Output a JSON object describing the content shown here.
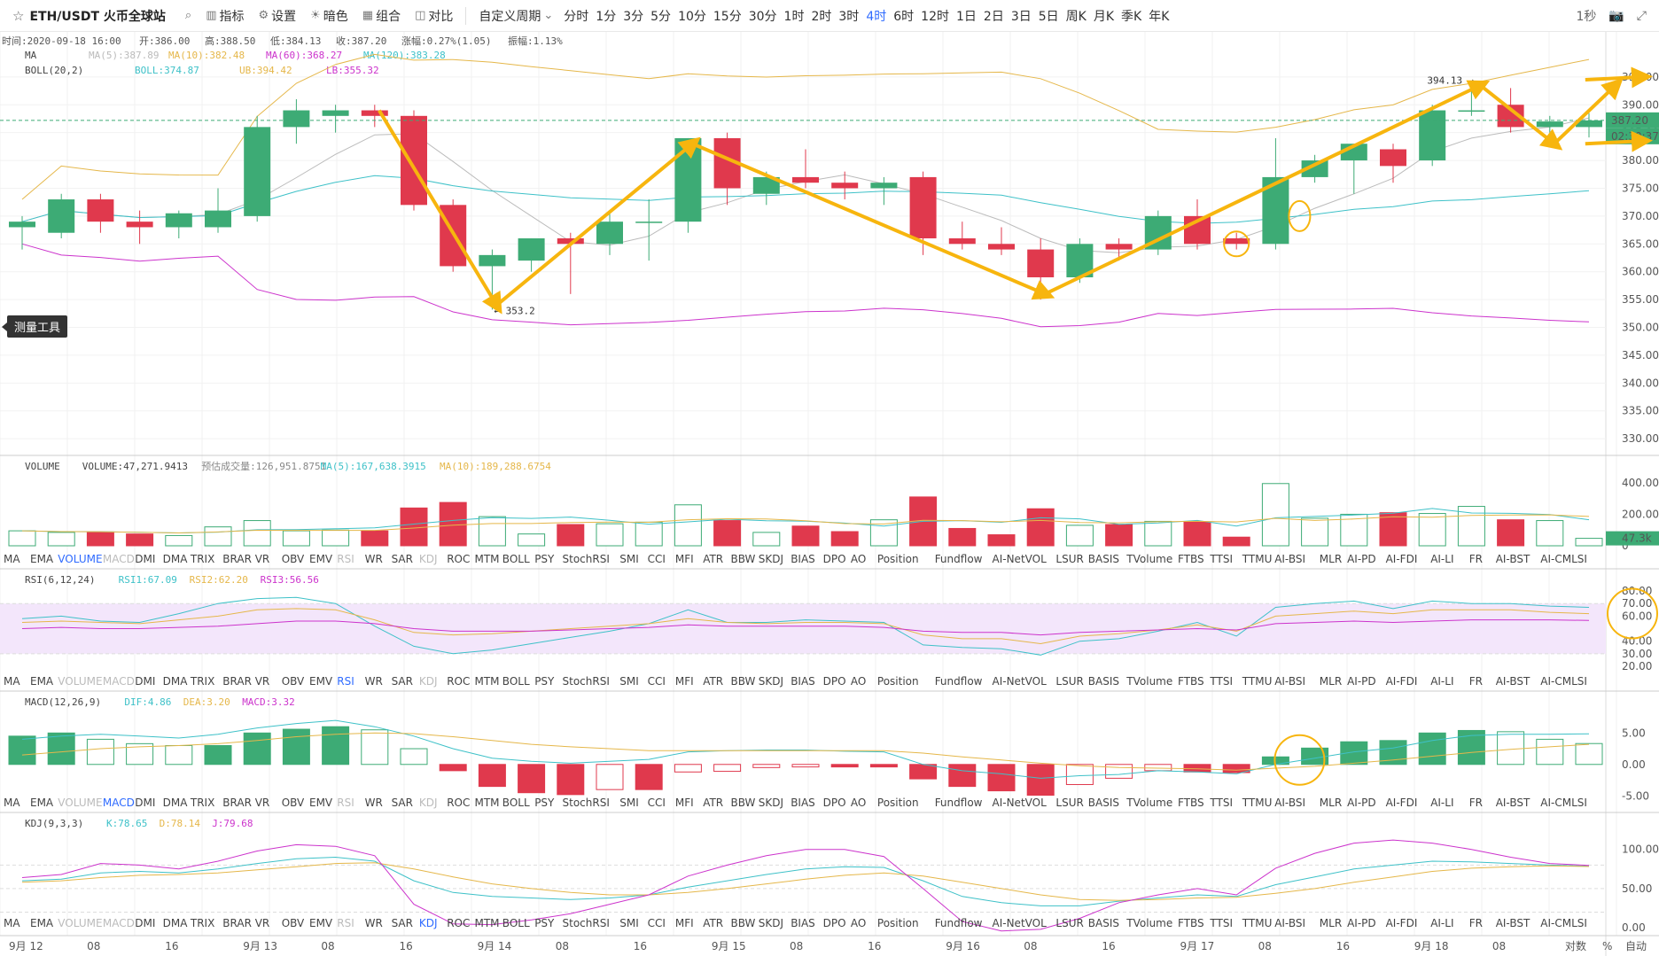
{
  "toolbar": {
    "symbol": "ETH/USDT 火币全球站",
    "buttons": [
      {
        "name": "search",
        "label": ""
      },
      {
        "name": "indicators",
        "label": "指标"
      },
      {
        "name": "settings",
        "label": "设置"
      },
      {
        "name": "dark",
        "label": "暗色"
      },
      {
        "name": "combo",
        "label": "组合"
      },
      {
        "name": "compare",
        "label": "对比"
      }
    ],
    "custom_period": "自定义周期",
    "periods": [
      "分时",
      "1分",
      "3分",
      "5分",
      "10分",
      "15分",
      "30分",
      "1时",
      "2时",
      "3时",
      "4时",
      "6时",
      "12时",
      "1日",
      "2日",
      "3日",
      "5日",
      "周K",
      "月K",
      "季K",
      "年K"
    ],
    "active_period": "4时",
    "interval": "1秒"
  },
  "info": {
    "line1": [
      {
        "k": "时间:",
        "v": "2020-09-18 16:00"
      },
      {
        "k": "开:",
        "v": "386.00"
      },
      {
        "k": "高:",
        "v": "388.50"
      },
      {
        "k": "低:",
        "v": "384.13"
      },
      {
        "k": "收:",
        "v": "387.20"
      },
      {
        "k": "涨幅:",
        "v": "0.27%(1.05)"
      },
      {
        "k": "振幅:",
        "v": "1.13%"
      }
    ],
    "ma": {
      "name": "MA",
      "ma5": "MA(5):387.89",
      "ma10": "MA(10):382.48",
      "ma60": "MA(60):368.27",
      "ma120": "MA(120):383.28"
    },
    "boll": {
      "name": "BOLL(20,2)",
      "mid": "BOLL:374.87",
      "ub": "UB:394.42",
      "lb": "LB:355.32"
    }
  },
  "volume_header": {
    "name": "VOLUME",
    "vol": "VOLUME:47,271.9413",
    "est": "预估成交量:126,951.8751",
    "ma5": "MA(5):167,638.3915",
    "ma10": "MA(10):189,288.6754"
  },
  "rsi_header": {
    "name": "RSI(6,12,24)",
    "r1": "RSI1:67.09",
    "r2": "RSI2:62.20",
    "r3": "RSI3:56.56"
  },
  "macd_header": {
    "name": "MACD(12,26,9)",
    "dif": "DIF:4.86",
    "dea": "DEA:3.20",
    "macd": "MACD:3.32"
  },
  "kdj_header": {
    "name": "KDJ(9,3,3)",
    "k": "K:78.65",
    "d": "D:78.14",
    "j": "J:79.68"
  },
  "indicator_tabs": [
    "MA",
    "EMA",
    "VOLUME",
    "MACD",
    "DMI",
    "DMA",
    "TRIX",
    "BRAR",
    "VR",
    "OBV",
    "EMV",
    "RSI",
    "WR",
    "SAR",
    "KDJ",
    "ROC",
    "MTM",
    "BOLL",
    "PSY",
    "StochRSI",
    "SMI",
    "CCI",
    "MFI",
    "ATR",
    "BBW",
    "SKDJ",
    "BIAS",
    "DPO",
    "AO",
    "Position",
    "Fundflow",
    "AI-NetVOL",
    "LSUR",
    "BASIS",
    "TVolume",
    "FTBS",
    "TTSI",
    "TTMU",
    "AI-BSI",
    "MLR",
    "AI-PD",
    "AI-FDI",
    "AI-LI",
    "FR",
    "AI-BST",
    "AI-CMLSI"
  ],
  "date_axis": [
    "9月 12",
    "08",
    "16",
    "9月 13",
    "08",
    "16",
    "9月 14",
    "08",
    "16",
    "9月 15",
    "08",
    "16",
    "9月 16",
    "08",
    "16",
    "9月 17",
    "08",
    "16",
    "9月 18",
    "08"
  ],
  "bottom_right": {
    "log": "对数",
    "pct": "%",
    "auto": "自动"
  },
  "measure_tool": "测量工具",
  "price_axis": [
    "395.00",
    "390.00",
    "385.00",
    "380.00",
    "375.00",
    "370.00",
    "365.00",
    "360.00",
    "355.00",
    "350.00",
    "345.00",
    "340.00",
    "335.00",
    "330.00"
  ],
  "last_price": "387.20",
  "countdown": "02:30:37",
  "annotations": {
    "high": "394.13",
    "low": "353.2"
  },
  "volume_axis": [
    "400.00k",
    "200.00k",
    "0"
  ],
  "last_volume": "47.3k",
  "rsi_axis": [
    "80.00",
    "70.00",
    "60.00",
    "40.00",
    "30.00",
    "20.00"
  ],
  "macd_axis": [
    "5.00",
    "0.00",
    "-5.00"
  ],
  "kdj_axis": [
    "100.00",
    "50.00",
    "0.00"
  ],
  "colors": {
    "up": "#3dab75",
    "down": "#e0394d",
    "ma5": "#bbbbbb",
    "ma10": "#e5b74a",
    "ma60": "#3ec1c8",
    "ma120": "#cc33cc",
    "arrow": "#f7b50e",
    "accent": "#2f6bff"
  },
  "chart_data": {
    "type": "candlestick",
    "interval": "4h",
    "candles": [
      {
        "o": 368,
        "h": 370,
        "l": 364,
        "c": 369,
        "v": 95000
      },
      {
        "o": 367,
        "h": 374,
        "l": 366,
        "c": 373,
        "v": 85000
      },
      {
        "o": 373,
        "h": 374,
        "l": 367,
        "c": 369,
        "v": 88000
      },
      {
        "o": 369,
        "h": 371,
        "l": 365,
        "c": 368,
        "v": 75000
      },
      {
        "o": 368,
        "h": 371,
        "l": 366,
        "c": 370.5,
        "v": 65000
      },
      {
        "o": 368,
        "h": 375,
        "l": 367,
        "c": 371,
        "v": 120000
      },
      {
        "o": 370,
        "h": 388,
        "l": 369,
        "c": 386,
        "v": 160000
      },
      {
        "o": 386,
        "h": 391,
        "l": 383,
        "c": 389,
        "v": 95000
      },
      {
        "o": 388,
        "h": 390,
        "l": 385,
        "c": 389,
        "v": 100000
      },
      {
        "o": 389,
        "h": 390,
        "l": 386,
        "c": 388,
        "v": 95000
      },
      {
        "o": 388,
        "h": 389,
        "l": 371,
        "c": 372,
        "v": 240000
      },
      {
        "o": 372,
        "h": 373,
        "l": 360,
        "c": 361,
        "v": 275000
      },
      {
        "o": 361,
        "h": 364,
        "l": 353.2,
        "c": 363,
        "v": 185000
      },
      {
        "o": 362,
        "h": 366,
        "l": 360,
        "c": 366,
        "v": 75000
      },
      {
        "o": 366,
        "h": 367,
        "l": 356,
        "c": 365,
        "v": 135000
      },
      {
        "o": 365,
        "h": 371,
        "l": 363,
        "c": 369,
        "v": 140000
      },
      {
        "o": 369,
        "h": 373,
        "l": 362,
        "c": 369,
        "v": 150000
      },
      {
        "o": 369,
        "h": 384,
        "l": 367,
        "c": 384,
        "v": 260000
      },
      {
        "o": 384,
        "h": 385,
        "l": 372,
        "c": 375,
        "v": 160000
      },
      {
        "o": 374,
        "h": 378,
        "l": 372,
        "c": 377,
        "v": 85000
      },
      {
        "o": 377,
        "h": 382,
        "l": 375,
        "c": 376,
        "v": 125000
      },
      {
        "o": 376,
        "h": 378,
        "l": 373,
        "c": 375,
        "v": 90000
      },
      {
        "o": 375,
        "h": 377,
        "l": 372,
        "c": 376,
        "v": 165000
      },
      {
        "o": 377,
        "h": 378,
        "l": 363,
        "c": 366,
        "v": 310000
      },
      {
        "o": 366,
        "h": 369,
        "l": 364,
        "c": 365,
        "v": 110000
      },
      {
        "o": 365,
        "h": 368,
        "l": 363,
        "c": 364,
        "v": 70000
      },
      {
        "o": 364,
        "h": 366,
        "l": 355,
        "c": 359,
        "v": 235000
      },
      {
        "o": 359,
        "h": 366,
        "l": 358,
        "c": 365,
        "v": 130000
      },
      {
        "o": 365,
        "h": 366,
        "l": 362,
        "c": 364,
        "v": 135000
      },
      {
        "o": 364,
        "h": 371,
        "l": 363,
        "c": 370,
        "v": 155000
      },
      {
        "o": 370,
        "h": 373,
        "l": 364,
        "c": 365,
        "v": 150000
      },
      {
        "o": 366,
        "h": 367,
        "l": 364,
        "c": 365,
        "v": 55000
      },
      {
        "o": 365,
        "h": 384,
        "l": 364,
        "c": 377,
        "v": 395000
      },
      {
        "o": 377,
        "h": 381,
        "l": 376,
        "c": 380,
        "v": 175000
      },
      {
        "o": 380,
        "h": 383,
        "l": 374,
        "c": 383,
        "v": 200000
      },
      {
        "o": 382,
        "h": 383,
        "l": 376,
        "c": 379,
        "v": 210000
      },
      {
        "o": 380,
        "h": 390,
        "l": 379,
        "c": 389,
        "v": 205000
      },
      {
        "o": 389,
        "h": 394.13,
        "l": 388,
        "c": 389,
        "v": 250000
      },
      {
        "o": 390,
        "h": 393,
        "l": 385,
        "c": 386,
        "v": 165000
      },
      {
        "o": 386,
        "h": 388,
        "l": 384,
        "c": 387,
        "v": 160000
      },
      {
        "o": 386,
        "h": 388.5,
        "l": 384.13,
        "c": 387.2,
        "v": 47272
      }
    ],
    "y_range": [
      327,
      398
    ],
    "x_labels": [
      "9月 12",
      "9月 13",
      "9月 14",
      "9月 15",
      "9月 16",
      "9月 17",
      "9月 18"
    ],
    "rsi": {
      "r1": [
        58,
        60,
        56,
        55,
        62,
        70,
        74,
        75,
        70,
        52,
        36,
        30,
        33,
        38,
        43,
        48,
        54,
        65,
        55,
        55,
        57,
        56,
        55,
        37,
        35,
        34,
        29,
        40,
        42,
        48,
        55,
        44,
        67,
        70,
        72,
        66,
        72,
        70,
        70,
        68,
        67
      ],
      "r2": [
        55,
        56,
        55,
        54,
        57,
        60,
        65,
        66,
        65,
        57,
        47,
        45,
        46,
        48,
        50,
        52,
        54,
        58,
        55,
        54,
        55,
        55,
        54,
        45,
        42,
        42,
        38,
        44,
        46,
        49,
        53,
        48,
        60,
        62,
        64,
        62,
        65,
        65,
        65,
        63,
        62
      ],
      "r3": [
        50,
        51,
        50,
        50,
        51,
        52,
        54,
        56,
        56,
        54,
        50,
        48,
        48,
        48,
        49,
        50,
        51,
        53,
        52,
        52,
        52,
        52,
        51,
        48,
        47,
        47,
        45,
        47,
        48,
        49,
        50,
        49,
        54,
        55,
        56,
        55,
        56,
        57,
        57,
        57,
        56.5
      ],
      "range": [
        20,
        85
      ]
    },
    "macd": {
      "dif": [
        4,
        4.5,
        4.8,
        4.5,
        4.2,
        4.8,
        5.8,
        6.5,
        7,
        6,
        4.5,
        2.5,
        1,
        0.5,
        0.2,
        0.5,
        0.8,
        2,
        2.2,
        2.3,
        2.3,
        2.1,
        2,
        0,
        -1,
        -1.5,
        -2.2,
        -1.8,
        -1.6,
        -1,
        -1.2,
        -1.5,
        0,
        1,
        2,
        2.6,
        3.8,
        4.6,
        4.8,
        4.8,
        4.86
      ],
      "dea": [
        1.5,
        2,
        2.5,
        2.8,
        3,
        3.3,
        3.8,
        4.4,
        4.8,
        5,
        4.9,
        4.4,
        3.8,
        3.2,
        2.8,
        2.5,
        2.2,
        2.2,
        2.2,
        2.2,
        2.2,
        2.2,
        2.2,
        1.8,
        1.2,
        0.7,
        0.2,
        -0.2,
        -0.5,
        -0.6,
        -0.7,
        -0.9,
        -0.6,
        -0.3,
        0.2,
        0.7,
        1.3,
        1.9,
        2.4,
        2.8,
        3.2
      ],
      "hist": [
        4.5,
        5,
        4,
        3.3,
        3,
        3,
        5,
        5.6,
        6,
        5.5,
        2.5,
        -1,
        -3.5,
        -4.5,
        -4.8,
        -4,
        -4,
        -1.2,
        -1.1,
        -0.5,
        -0.4,
        -0.4,
        -0.4,
        -2.3,
        -3.5,
        -4.2,
        -4.9,
        -3.2,
        -2.2,
        -1,
        -1.2,
        -1.3,
        1.2,
        2.6,
        3.6,
        3.8,
        5,
        5.4,
        5.2,
        4,
        3.32
      ],
      "range": [
        -7.5,
        8
      ]
    },
    "kdj": {
      "k": [
        60,
        62,
        70,
        72,
        70,
        75,
        82,
        88,
        90,
        85,
        60,
        45,
        40,
        38,
        36,
        38,
        42,
        52,
        60,
        68,
        75,
        78,
        77,
        60,
        40,
        32,
        28,
        28,
        34,
        38,
        42,
        40,
        55,
        65,
        75,
        80,
        85,
        84,
        82,
        80,
        78.65
      ],
      "d": [
        58,
        60,
        64,
        67,
        68,
        70,
        74,
        78,
        82,
        83,
        75,
        65,
        56,
        50,
        45,
        42,
        42,
        45,
        50,
        56,
        62,
        67,
        70,
        66,
        58,
        50,
        42,
        36,
        35,
        36,
        38,
        39,
        44,
        50,
        58,
        65,
        72,
        76,
        78,
        79,
        78.14
      ],
      "j": [
        64,
        68,
        82,
        80,
        75,
        85,
        98,
        106,
        104,
        92,
        30,
        5,
        4,
        10,
        18,
        30,
        42,
        66,
        80,
        92,
        100,
        100,
        91,
        50,
        8,
        -4,
        -2,
        12,
        32,
        42,
        50,
        42,
        76,
        95,
        108,
        112,
        108,
        100,
        90,
        82,
        79.68
      ],
      "range": [
        -10,
        120
      ]
    }
  }
}
